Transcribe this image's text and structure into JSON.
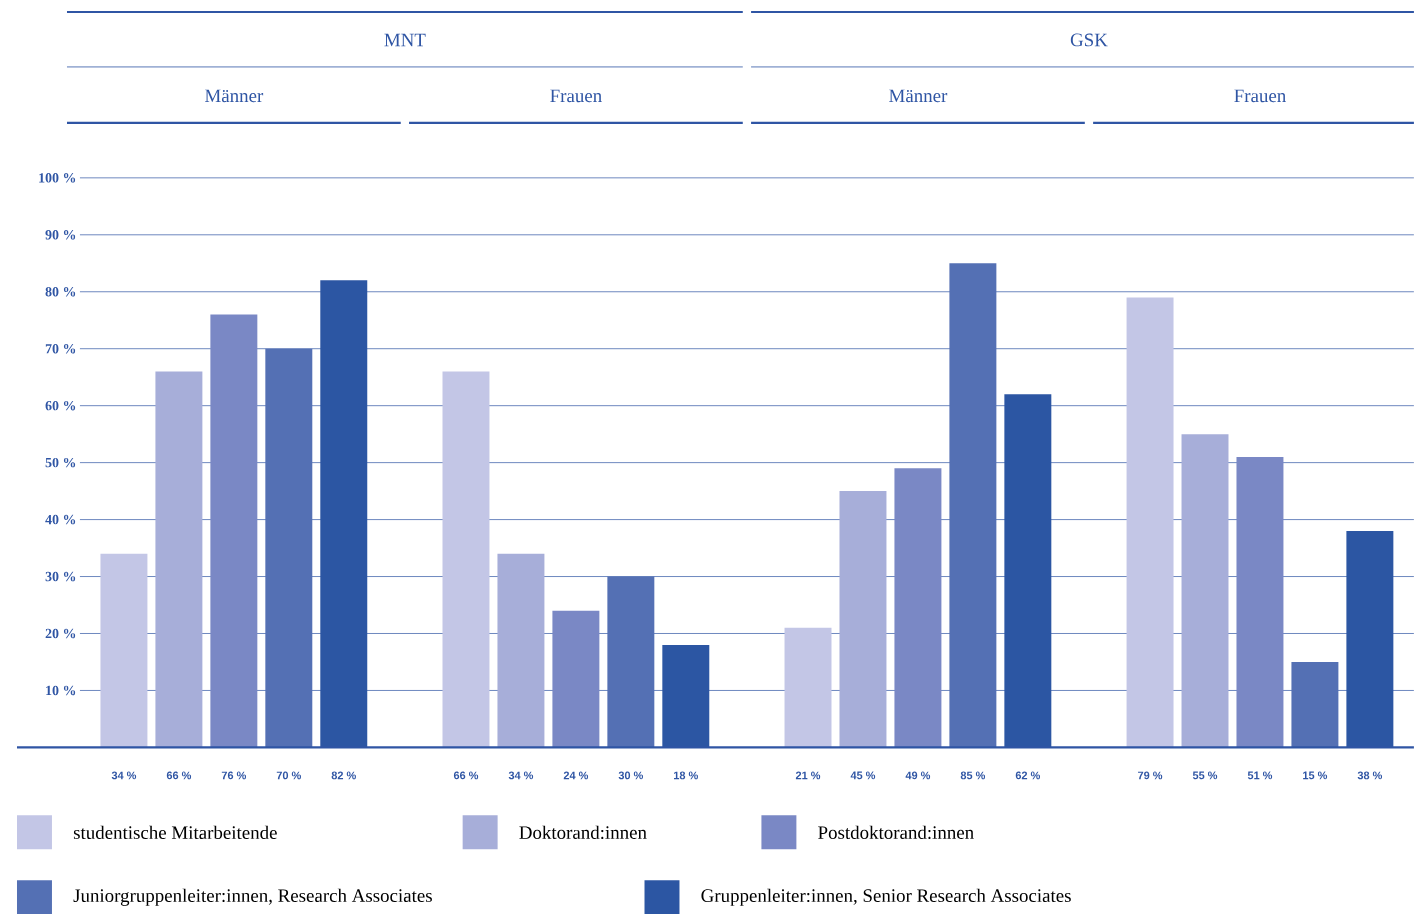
{
  "chart_data": {
    "type": "bar",
    "annotations": [
      "MNT",
      "GSK"
    ],
    "categories": [
      "Männer",
      "Frauen",
      "Männer",
      "Frauen"
    ],
    "series": [
      {
        "name": "studentische Mitarbeitende",
        "color": "#c3c6e6",
        "values": [
          34,
          66,
          21,
          79
        ],
        "value_labels": [
          "34 %",
          "66 %",
          "21 %",
          "79 %"
        ]
      },
      {
        "name": "Doktorand:innen",
        "color": "#a7aed9",
        "values": [
          66,
          34,
          45,
          55
        ],
        "value_labels": [
          "66 %",
          "34 %",
          "45 %",
          "55 %"
        ]
      },
      {
        "name": "Postdoktorand:innen",
        "color": "#7a88c5",
        "values": [
          76,
          24,
          49,
          51
        ],
        "value_labels": [
          "76 %",
          "24 %",
          "49 %",
          "51 %"
        ]
      },
      {
        "name": "Juniorgruppenleiter:innen, Research Associates",
        "color": "#5470b4",
        "values": [
          70,
          30,
          85,
          15
        ],
        "value_labels": [
          "70 %",
          "30 %",
          "85 %",
          "15 %"
        ]
      },
      {
        "name": "Gruppenleiter:innen, Senior Research Associates",
        "color": "#2c56a3",
        "values": [
          82,
          18,
          62,
          38
        ],
        "value_labels": [
          "82 %",
          "18 %",
          "62 %",
          "38 %"
        ]
      }
    ],
    "ylim": [
      0,
      100
    ],
    "yticks": [
      {
        "value": 10,
        "label": "10 %"
      },
      {
        "value": 20,
        "label": "20 %"
      },
      {
        "value": 30,
        "label": "30 %"
      },
      {
        "value": 40,
        "label": "40 %"
      },
      {
        "value": 50,
        "label": "50 %"
      },
      {
        "value": 60,
        "label": "60 %"
      },
      {
        "value": 70,
        "label": "70 %"
      },
      {
        "value": 80,
        "label": "80 %"
      },
      {
        "value": 90,
        "label": "90 %"
      },
      {
        "value": 100,
        "label": "100 %"
      }
    ],
    "grid": "y",
    "legend": "bottom"
  }
}
